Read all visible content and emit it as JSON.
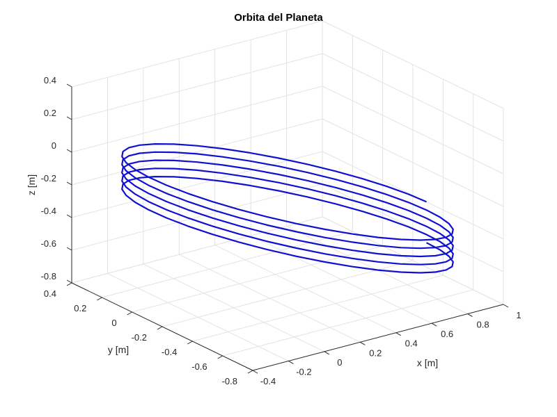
{
  "chart_data": {
    "type": "line",
    "title": "Orbita del Planeta",
    "xlabel": "x [m]",
    "ylabel": "y [m]",
    "zlabel": "z [m]",
    "xlim": [
      -0.4,
      1
    ],
    "ylim": [
      -0.8,
      0.4
    ],
    "zlim": [
      -0.8,
      0.4
    ],
    "xticks": [
      "-0.4",
      "-0.2",
      "0",
      "0.2",
      "0.4",
      "0.6",
      "0.8",
      "1"
    ],
    "yticks": [
      "-0.8",
      "-0.6",
      "-0.4",
      "-0.2",
      "0",
      "0.2",
      "0.4"
    ],
    "zticks": [
      "-0.8",
      "-0.6",
      "-0.4",
      "-0.2",
      "0",
      "0.2",
      "0.4"
    ],
    "grid": true,
    "line_color": "#1010d0",
    "series": [
      {
        "description_of_shape": "inclined elliptical orbit spiralling downward over 5 revolutions",
        "revolutions": 5,
        "x_range": [
          -0.4,
          1.0
        ],
        "y_range": [
          -0.8,
          0.4
        ],
        "z_top": 0.12,
        "z_bottom": -0.58
      }
    ]
  }
}
